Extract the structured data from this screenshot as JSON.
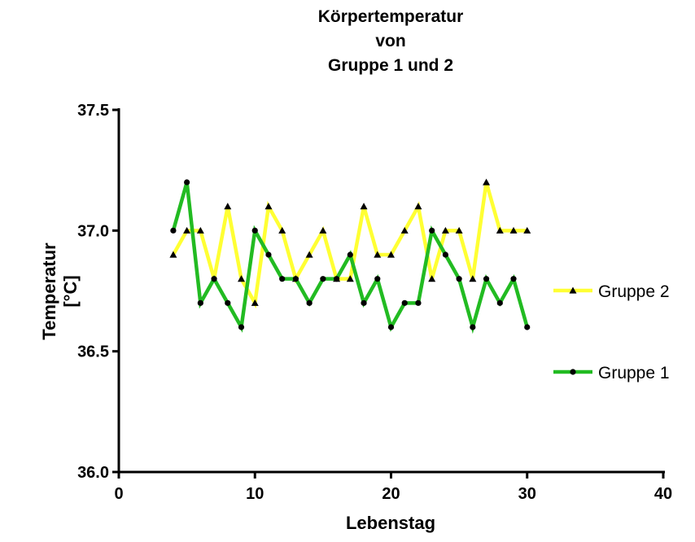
{
  "chart_data": {
    "type": "line",
    "title_lines": [
      "Körpertemperatur",
      "von",
      "Gruppe 1 und 2"
    ],
    "xlabel": "Lebenstag",
    "ylabel_lines": [
      "Temperatur",
      "[°C]"
    ],
    "xlim": [
      0,
      40
    ],
    "ylim": [
      36.0,
      37.5
    ],
    "xticks": [
      "0",
      "10",
      "20",
      "30",
      "40"
    ],
    "yticks": [
      "36.0",
      "36.5",
      "37.0",
      "37.5"
    ],
    "grid": false,
    "legend_position": "right",
    "series": [
      {
        "name": "Gruppe 2",
        "color": "#ffff33",
        "marker": "triangle",
        "x": [
          4,
          5,
          6,
          7,
          8,
          9,
          10,
          11,
          12,
          13,
          14,
          15,
          16,
          17,
          18,
          19,
          20,
          21,
          22,
          23,
          24,
          25,
          26,
          27,
          28,
          29,
          30
        ],
        "y": [
          36.9,
          37.0,
          37.0,
          36.8,
          37.1,
          36.8,
          36.7,
          37.1,
          37.0,
          36.8,
          36.9,
          37.0,
          36.8,
          36.8,
          37.1,
          36.9,
          36.9,
          37.0,
          37.1,
          36.8,
          37.0,
          37.0,
          36.8,
          37.2,
          37.0,
          37.0,
          37.0
        ]
      },
      {
        "name": "Gruppe 1",
        "color": "#22bb22",
        "marker": "circle",
        "x": [
          4,
          5,
          6,
          7,
          8,
          9,
          10,
          11,
          12,
          13,
          14,
          15,
          16,
          17,
          18,
          19,
          20,
          21,
          22,
          23,
          24,
          25,
          26,
          27,
          28,
          29,
          30
        ],
        "y": [
          37.0,
          37.2,
          36.7,
          36.8,
          36.7,
          36.6,
          37.0,
          36.9,
          36.8,
          36.8,
          36.7,
          36.8,
          36.8,
          36.9,
          36.7,
          36.8,
          36.6,
          36.7,
          36.7,
          37.0,
          36.9,
          36.8,
          36.6,
          36.8,
          36.7,
          36.8,
          36.6
        ]
      }
    ]
  }
}
